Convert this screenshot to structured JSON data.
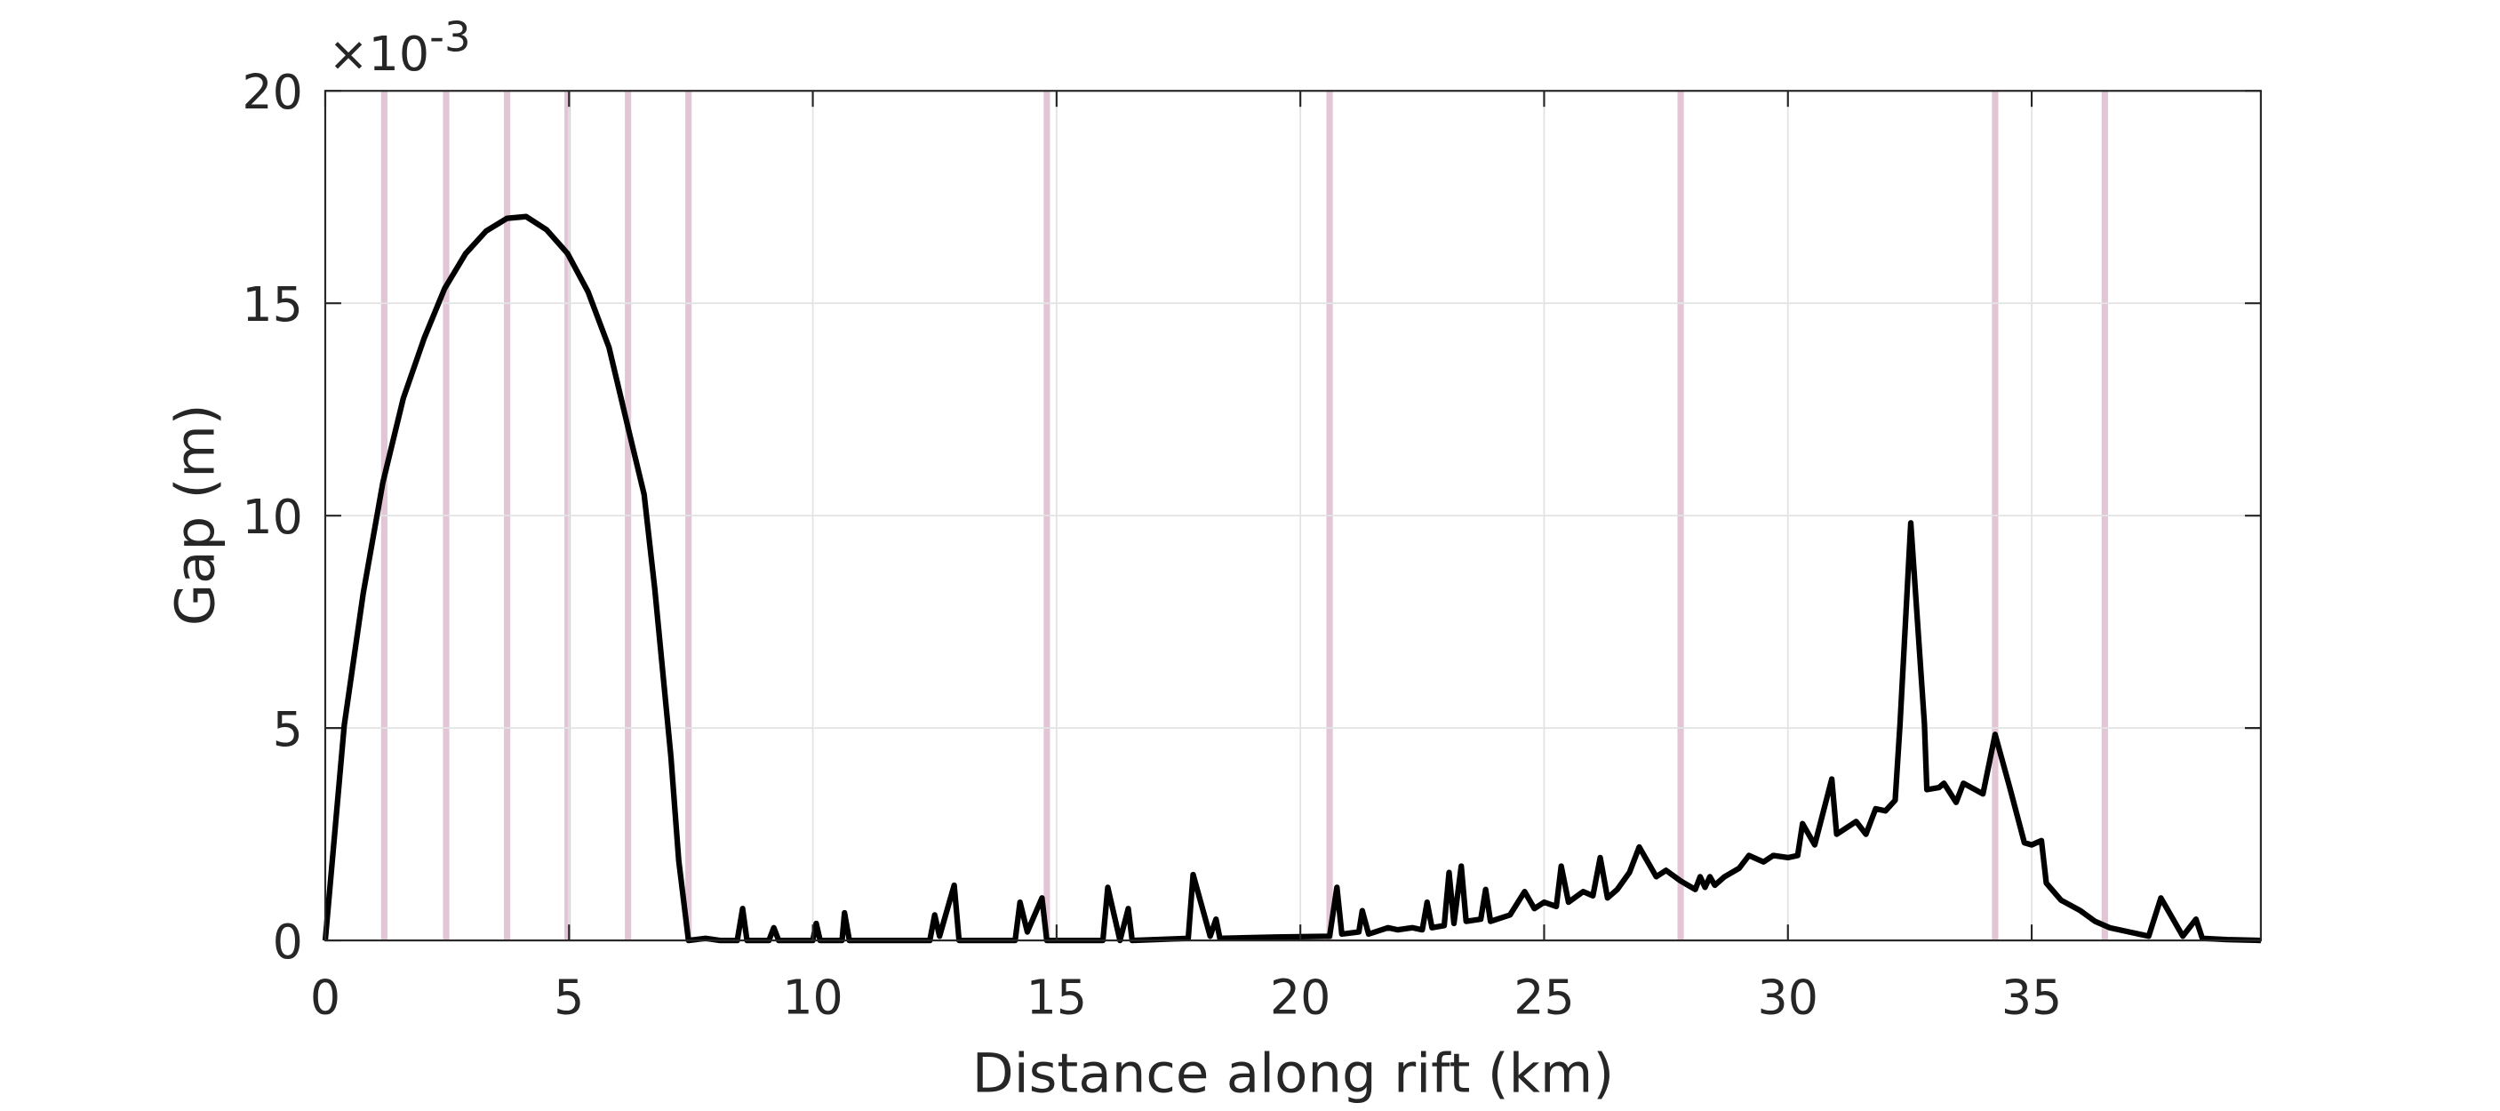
{
  "chart_data": {
    "type": "line",
    "x_label": "Distance along rift (km)",
    "y_label": "Gap (m)",
    "y_multiplier": {
      "base": "×10",
      "exponent": "-3"
    },
    "xlim": [
      0,
      39.7
    ],
    "ylim": [
      0,
      0.02
    ],
    "xticks": [
      0,
      5,
      10,
      15,
      20,
      25,
      30,
      35
    ],
    "yticks": [
      {
        "value": 0,
        "label": "0"
      },
      {
        "value": 0.005,
        "label": "5"
      },
      {
        "value": 0.01,
        "label": "10"
      },
      {
        "value": 0.015,
        "label": "15"
      },
      {
        "value": 0.02,
        "label": "20"
      }
    ],
    "grid": true,
    "vlines": {
      "color": "#e3c6d6",
      "x": [
        1.21,
        2.48,
        3.73,
        4.97,
        6.21,
        7.45,
        14.8,
        20.6,
        27.8,
        34.25,
        36.5
      ]
    },
    "x": [
      0,
      0.39,
      0.78,
      1.18,
      1.6,
      2.03,
      2.45,
      2.88,
      3.3,
      3.73,
      4.12,
      4.54,
      4.97,
      5.39,
      5.82,
      6.24,
      6.54,
      6.76,
      7.09,
      7.25,
      7.45,
      7.8,
      8.1,
      8.45,
      8.56,
      8.65,
      9.1,
      9.2,
      9.3,
      10.0,
      10.07,
      10.15,
      10.6,
      10.65,
      10.75,
      12.4,
      12.5,
      12.6,
      12.9,
      13.0,
      14.15,
      14.25,
      14.4,
      14.7,
      14.8,
      15.95,
      16.05,
      16.3,
      16.47,
      16.55,
      17.7,
      17.8,
      18.15,
      18.27,
      18.35,
      19.5,
      20.6,
      20.75,
      20.85,
      21.2,
      21.27,
      21.4,
      21.8,
      22.0,
      22.3,
      22.5,
      22.6,
      22.7,
      22.95,
      23.05,
      23.15,
      23.3,
      23.4,
      23.7,
      23.8,
      23.9,
      24.3,
      24.6,
      24.8,
      25.0,
      25.25,
      25.35,
      25.5,
      25.8,
      26.0,
      26.15,
      26.3,
      26.5,
      26.75,
      26.95,
      27.3,
      27.5,
      27.8,
      28.1,
      28.2,
      28.3,
      28.4,
      28.5,
      28.7,
      29.0,
      29.2,
      29.5,
      29.7,
      30.0,
      30.2,
      30.3,
      30.55,
      30.9,
      31.0,
      31.4,
      31.6,
      31.8,
      32.0,
      32.2,
      32.3,
      32.52,
      32.8,
      32.85,
      33.1,
      33.2,
      33.45,
      33.6,
      34.0,
      34.25,
      34.55,
      34.85,
      35.0,
      35.2,
      35.3,
      35.6,
      36.0,
      36.3,
      36.6,
      37.0,
      37.4,
      37.65,
      38.1,
      38.37,
      38.5,
      39.0,
      39.7
    ],
    "series": [
      {
        "color": "#000000",
        "values": [
          0,
          0.00507,
          0.00818,
          0.01077,
          0.01276,
          0.01418,
          0.01535,
          0.01617,
          0.0167,
          0.017,
          0.01704,
          0.01673,
          0.01617,
          0.01527,
          0.01396,
          0.01193,
          0.0105,
          0.00826,
          0.00432,
          0.00188,
          0,
          5e-05,
          0,
          0,
          0.00075,
          0,
          0,
          0.0003,
          0,
          0,
          0.0004,
          0,
          0,
          0.00065,
          0,
          0,
          0.0006,
          0.0001,
          0.0013,
          0,
          0,
          0.0009,
          0.0002,
          0.001,
          0,
          0,
          0.00125,
          0,
          0.00075,
          0,
          5e-05,
          0.00155,
          0.0001,
          0.0005,
          5e-05,
          8e-05,
          0.0001,
          0.00125,
          0.00015,
          0.0002,
          0.0007,
          0.00015,
          0.0003,
          0.00025,
          0.0003,
          0.00025,
          0.0009,
          0.0003,
          0.00035,
          0.0016,
          0.0004,
          0.00175,
          0.00045,
          0.0005,
          0.0012,
          0.00045,
          0.0006,
          0.00115,
          0.00075,
          0.0009,
          0.0008,
          0.00175,
          0.0009,
          0.00115,
          0.00105,
          0.00195,
          0.001,
          0.0012,
          0.0016,
          0.0022,
          0.0015,
          0.00165,
          0.0014,
          0.0012,
          0.0015,
          0.00125,
          0.0015,
          0.0013,
          0.0015,
          0.0017,
          0.002,
          0.00185,
          0.002,
          0.00195,
          0.002,
          0.00275,
          0.00225,
          0.0038,
          0.0025,
          0.0028,
          0.0025,
          0.0031,
          0.00305,
          0.0033,
          0.0051,
          0.00983,
          0.0051,
          0.00355,
          0.0036,
          0.0037,
          0.00325,
          0.0037,
          0.00345,
          0.00485,
          0.0036,
          0.0023,
          0.00225,
          0.00235,
          0.00135,
          0.00095,
          0.0007,
          0.00045,
          0.0003,
          0.0002,
          0.0001,
          0.001,
          0.0001,
          0.0005,
          5e-05,
          2e-05,
          0
        ]
      }
    ]
  }
}
